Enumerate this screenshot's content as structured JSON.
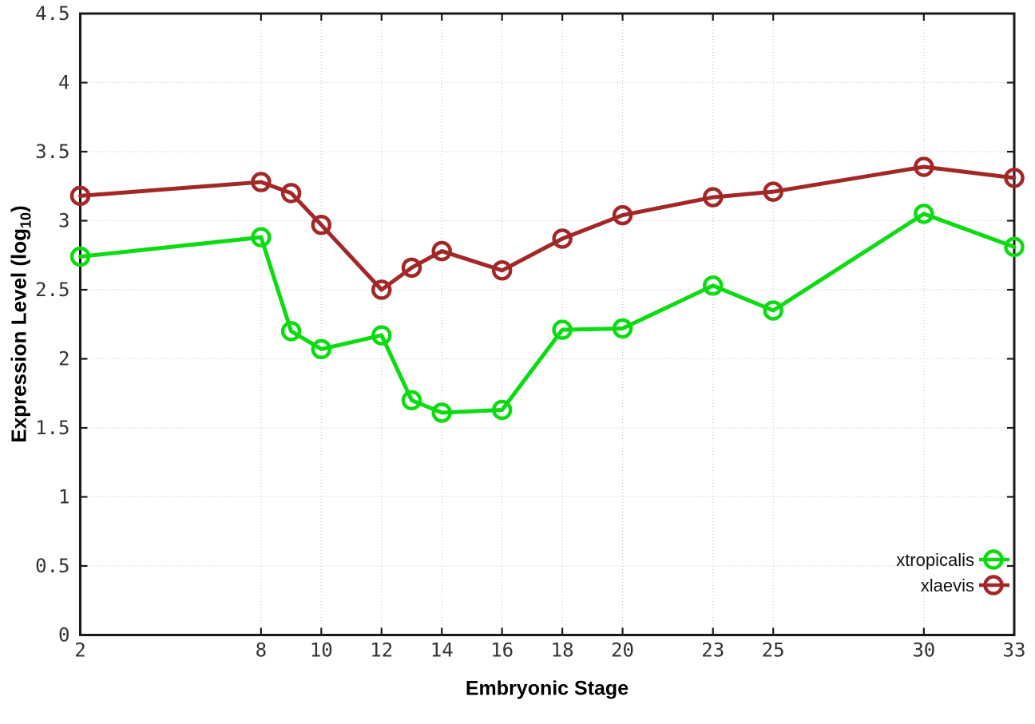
{
  "figure": {
    "background": "#ffffff",
    "xlabel": "Embryonic Stage",
    "ylabel_prefix": "Expression Level (log",
    "ylabel_subscript": "10",
    "ylabel_suffix": ")"
  },
  "chart_data": {
    "type": "line",
    "title": "",
    "xlabel": "Embryonic Stage",
    "ylabel": "Expression Level (log10)",
    "x": [
      2,
      8,
      9,
      10,
      12,
      13,
      14,
      16,
      18,
      20,
      23,
      25,
      30,
      33
    ],
    "xticks": [
      2,
      8,
      10,
      12,
      14,
      16,
      18,
      20,
      23,
      25,
      30,
      33
    ],
    "yticks": [
      0,
      0.5,
      1,
      1.5,
      2,
      2.5,
      3,
      3.5,
      4,
      4.5
    ],
    "xlim": [
      2,
      33
    ],
    "ylim": [
      0,
      4.5
    ],
    "grid": true,
    "marker": "open-circle",
    "legend_position": "bottom-right",
    "series": [
      {
        "name": "xtropicalis",
        "color": "#0bdb10",
        "values": [
          2.74,
          2.88,
          2.2,
          2.07,
          2.17,
          1.7,
          1.61,
          1.63,
          2.21,
          2.22,
          2.53,
          2.35,
          3.05,
          2.81
        ]
      },
      {
        "name": "xlaevis",
        "color": "#a22828",
        "values": [
          3.18,
          3.28,
          3.2,
          2.97,
          2.5,
          2.66,
          2.78,
          2.64,
          2.87,
          3.04,
          3.17,
          3.21,
          3.39,
          3.31
        ]
      }
    ],
    "colors": {
      "grid": "#bbbbbb",
      "border": "#1a1a1a",
      "tick_text": "#333333"
    }
  }
}
